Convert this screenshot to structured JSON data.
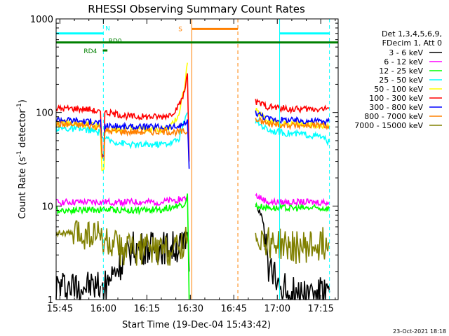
{
  "chart_data": {
    "type": "line",
    "title": "RHESSI Observing Summary Count Rates",
    "xlabel": "Start Time (19-Dec-04 15:43:42)",
    "ylabel_parts": [
      "Count Rate (s",
      "-1",
      " detector",
      "-1",
      ")"
    ],
    "y_scale": "log",
    "ylim": [
      1,
      1000
    ],
    "xlim_minutes_after_1545": [
      -1.3,
      96
    ],
    "x_ticks": [
      {
        "label": "15:45",
        "t": 0
      },
      {
        "label": "16:00",
        "t": 15
      },
      {
        "label": "16:15",
        "t": 30
      },
      {
        "label": "16:30",
        "t": 45
      },
      {
        "label": "16:45",
        "t": 60
      },
      {
        "label": "17:00",
        "t": 75
      },
      {
        "label": "17:15",
        "t": 90
      }
    ],
    "y_ticks": [
      {
        "label": "1",
        "v": 1
      },
      {
        "label": "10",
        "v": 10
      },
      {
        "label": "100",
        "v": 100
      },
      {
        "label": "1000",
        "v": 1000
      }
    ],
    "legend": {
      "header": [
        "Det 1,3,4,5,6,9,",
        "FDecim 1, Att 0"
      ],
      "placement": "right"
    },
    "series": [
      {
        "name": "3 - 6 keV",
        "color": "#000000",
        "segments": [
          [
            [
              -1.3,
              1.4
            ],
            [
              14,
              1.4
            ]
          ],
          [
            [
              14.5,
              1.3
            ],
            [
              25,
              3.6
            ],
            [
              35,
              3.6
            ],
            [
              43,
              3.7
            ],
            [
              44,
              5.5
            ],
            [
              44.6,
              2.0
            ]
          ],
          [
            [
              67.5,
              11
            ],
            [
              70,
              7
            ],
            [
              72,
              2.2
            ],
            [
              75,
              1.5
            ],
            [
              80,
              1.2
            ],
            [
              85,
              1.2
            ],
            [
              93,
              1.2
            ]
          ]
        ]
      },
      {
        "name": "6 - 12 keV",
        "color": "#ff00ff",
        "segments": [
          [
            [
              -1.3,
              11
            ],
            [
              14,
              11
            ],
            [
              25,
              11
            ],
            [
              35,
              11
            ],
            [
              43,
              12
            ],
            [
              44,
              12.5
            ]
          ],
          [
            [
              67.5,
              13
            ],
            [
              72,
              11
            ],
            [
              80,
              11
            ],
            [
              93,
              11
            ]
          ]
        ]
      },
      {
        "name": "12 - 25 keV",
        "color": "#00ff00",
        "segments": [
          [
            [
              -1.3,
              9
            ],
            [
              14,
              9.2
            ],
            [
              25,
              9
            ],
            [
              35,
              9.2
            ],
            [
              43,
              10.5
            ],
            [
              44,
              13
            ],
            [
              44.6,
              1.0
            ]
          ],
          [
            [
              67.5,
              10
            ],
            [
              75,
              9.5
            ],
            [
              85,
              9.5
            ],
            [
              93,
              9.5
            ]
          ]
        ]
      },
      {
        "name": "25 - 50 keV",
        "color": "#00ffff",
        "segments": [
          [
            [
              -1.3,
              68
            ],
            [
              10,
              65
            ],
            [
              14,
              60
            ],
            [
              15,
              52
            ],
            [
              20,
              48
            ],
            [
              25,
              45
            ],
            [
              30,
              45
            ],
            [
              35,
              46
            ],
            [
              38,
              47
            ],
            [
              41,
              52
            ],
            [
              43,
              80
            ],
            [
              44,
              100
            ]
          ],
          [
            [
              67.5,
              80
            ],
            [
              72,
              65
            ],
            [
              78,
              60
            ],
            [
              85,
              58
            ],
            [
              90,
              55
            ],
            [
              93,
              48
            ]
          ]
        ]
      },
      {
        "name": "50 - 100 keV",
        "color": "#ffff00",
        "segments": [
          [
            [
              -1.3,
              78
            ],
            [
              10,
              74
            ],
            [
              14,
              70
            ],
            [
              14.5,
              24
            ],
            [
              15.2,
              24
            ],
            [
              15.5,
              65
            ],
            [
              25,
              67
            ],
            [
              30,
              66
            ],
            [
              35,
              65
            ],
            [
              38,
              68
            ],
            [
              41,
              95
            ],
            [
              43,
              190
            ],
            [
              44,
              340
            ]
          ],
          [
            [
              67.5,
              105
            ],
            [
              72,
              80
            ],
            [
              80,
              75
            ],
            [
              93,
              72
            ]
          ]
        ]
      },
      {
        "name": "100 - 300 keV",
        "color": "#ff0000",
        "segments": [
          [
            [
              -1.3,
              110
            ],
            [
              5,
              110
            ],
            [
              10,
              108
            ],
            [
              14,
              100
            ],
            [
              14.5,
              36
            ],
            [
              15.2,
              36
            ],
            [
              15.5,
              100
            ],
            [
              25,
              90
            ],
            [
              35,
              90
            ],
            [
              38,
              95
            ],
            [
              41,
              115
            ],
            [
              43,
              165
            ],
            [
              44,
              270
            ],
            [
              44.6,
              30
            ]
          ],
          [
            [
              67.5,
              130
            ],
            [
              72,
              115
            ],
            [
              80,
              108
            ],
            [
              93,
              110
            ]
          ]
        ]
      },
      {
        "name": "300 - 800 keV",
        "color": "#0000ff",
        "segments": [
          [
            [
              -1.3,
              85
            ],
            [
              10,
              80
            ],
            [
              14,
              78
            ],
            [
              14.5,
              35
            ],
            [
              15.2,
              35
            ],
            [
              15.5,
              72
            ],
            [
              25,
              70
            ],
            [
              35,
              70
            ],
            [
              40,
              70
            ],
            [
              43,
              75
            ],
            [
              44,
              80
            ],
            [
              44.6,
              25
            ]
          ],
          [
            [
              67.5,
              100
            ],
            [
              72,
              85
            ],
            [
              80,
              82
            ],
            [
              93,
              80
            ]
          ]
        ]
      },
      {
        "name": "800 - 7000 keV",
        "color": "#ff8000",
        "segments": [
          [
            [
              -1.3,
              75
            ],
            [
              10,
              72
            ],
            [
              14,
              70
            ],
            [
              14.5,
              34
            ],
            [
              15.2,
              34
            ],
            [
              15.5,
              63
            ],
            [
              25,
              62
            ],
            [
              35,
              62
            ],
            [
              44,
              62
            ]
          ],
          [
            [
              67.5,
              85
            ],
            [
              72,
              75
            ],
            [
              80,
              73
            ],
            [
              93,
              72
            ]
          ]
        ]
      },
      {
        "name": "7000 - 15000 keV",
        "color": "#808000",
        "segments": [
          [
            [
              -1.3,
              5.2
            ],
            [
              5,
              5
            ],
            [
              10,
              5
            ],
            [
              14,
              4.8
            ],
            [
              15,
              4.2
            ],
            [
              20,
              3.5
            ],
            [
              30,
              3.4
            ],
            [
              40,
              3.5
            ],
            [
              44,
              4.6
            ]
          ],
          [
            [
              67.5,
              5
            ],
            [
              72,
              4.2
            ],
            [
              80,
              3.6
            ],
            [
              85,
              3.6
            ],
            [
              93,
              4.1
            ]
          ]
        ]
      }
    ],
    "annotations": [
      {
        "label": "N",
        "color": "#00ffff",
        "t": 15.2
      },
      {
        "label": "RD0",
        "color": "#008000",
        "t": 15.3
      },
      {
        "label": "RD4",
        "color": "#008000",
        "t": 13.3
      },
      {
        "label": "S",
        "color": "#ff8000",
        "t": 43.0
      }
    ],
    "state_bars": [
      {
        "color": "#00ffff",
        "y": 700,
        "ranges": [
          [
            -1.3,
            15.0
          ],
          [
            75.8,
            93
          ]
        ]
      },
      {
        "color": "#008000",
        "y": 560,
        "ranges": [
          [
            -1.3,
            96
          ]
        ]
      },
      {
        "color": "#ff8000",
        "y": 780,
        "ranges": [
          [
            45.5,
            61.4
          ]
        ]
      },
      {
        "color": "#008000",
        "y": 460,
        "ranges": [
          [
            14.8,
            16.4
          ]
        ]
      }
    ],
    "vlines": [
      {
        "color": "#00ffff",
        "t": 15.0,
        "dashed": true
      },
      {
        "color": "#00ffff",
        "t": 75.8,
        "dashed": false
      },
      {
        "color": "#00ffff",
        "t": 93.0,
        "dashed": true
      },
      {
        "color": "#ff8000",
        "t": 45.5,
        "dashed": false
      },
      {
        "color": "#ff8000",
        "t": 61.4,
        "dashed": true
      }
    ]
  },
  "footer_date": "23-Oct-2021 18:18"
}
